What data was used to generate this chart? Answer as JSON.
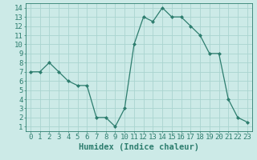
{
  "x": [
    0,
    1,
    2,
    3,
    4,
    5,
    6,
    7,
    8,
    9,
    10,
    11,
    12,
    13,
    14,
    15,
    16,
    17,
    18,
    19,
    20,
    21,
    22,
    23
  ],
  "y": [
    7,
    7,
    8,
    7,
    6,
    5.5,
    5.5,
    2,
    2,
    1,
    3,
    10,
    13,
    12.5,
    14,
    13,
    13,
    12,
    11,
    9,
    9,
    4,
    2,
    1.5
  ],
  "line_color": "#2d7d6e",
  "marker_color": "#2d7d6e",
  "bg_color": "#cceae7",
  "grid_color": "#aad4d0",
  "xlabel": "Humidex (Indice chaleur)",
  "xlim": [
    -0.5,
    23.5
  ],
  "ylim": [
    0.5,
    14.5
  ],
  "xticks": [
    0,
    1,
    2,
    3,
    4,
    5,
    6,
    7,
    8,
    9,
    10,
    11,
    12,
    13,
    14,
    15,
    16,
    17,
    18,
    19,
    20,
    21,
    22,
    23
  ],
  "yticks": [
    1,
    2,
    3,
    4,
    5,
    6,
    7,
    8,
    9,
    10,
    11,
    12,
    13,
    14
  ],
  "xlabel_fontsize": 7.5,
  "tick_fontsize": 6.5
}
